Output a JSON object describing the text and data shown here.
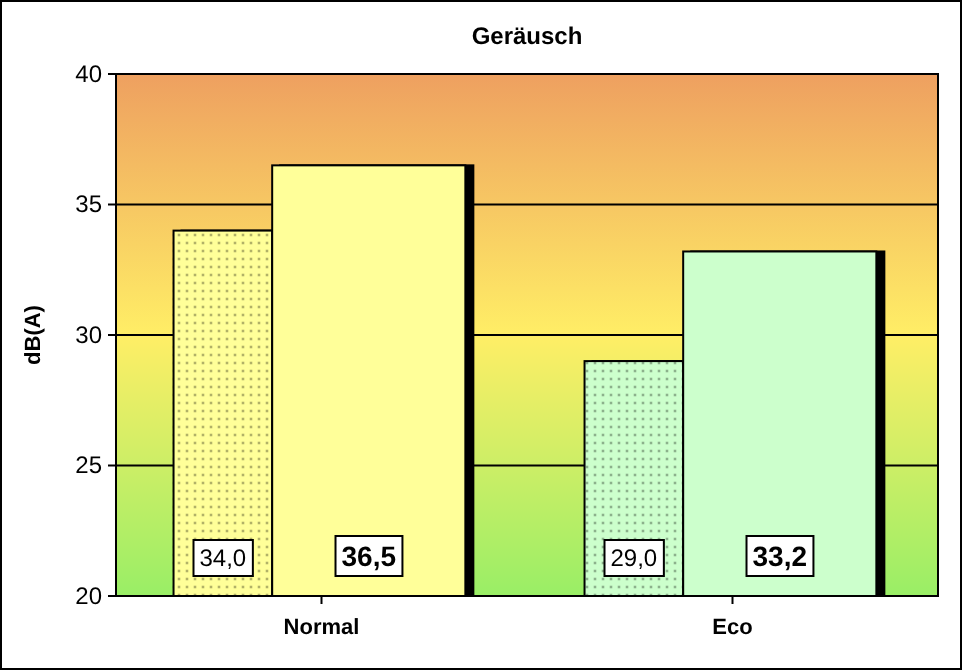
{
  "chart_data": {
    "type": "bar",
    "title": "Geräusch",
    "ylabel": "dB(A)",
    "categories": [
      "Normal",
      "Eco"
    ],
    "series": [
      {
        "colors": [
          "#ffff99",
          "#ccffcc"
        ],
        "values": [
          34.0,
          29.0
        ],
        "value_labels": [
          "34,0",
          "29,0"
        ]
      },
      {
        "colors": [
          "#ffff99",
          "#ccffcc"
        ],
        "values": [
          36.5,
          33.2
        ],
        "value_labels": [
          "36,5",
          "33,2"
        ]
      }
    ],
    "ylim": [
      20,
      40
    ],
    "yticks": [
      20,
      25,
      30,
      35,
      40
    ],
    "grid": "y"
  }
}
